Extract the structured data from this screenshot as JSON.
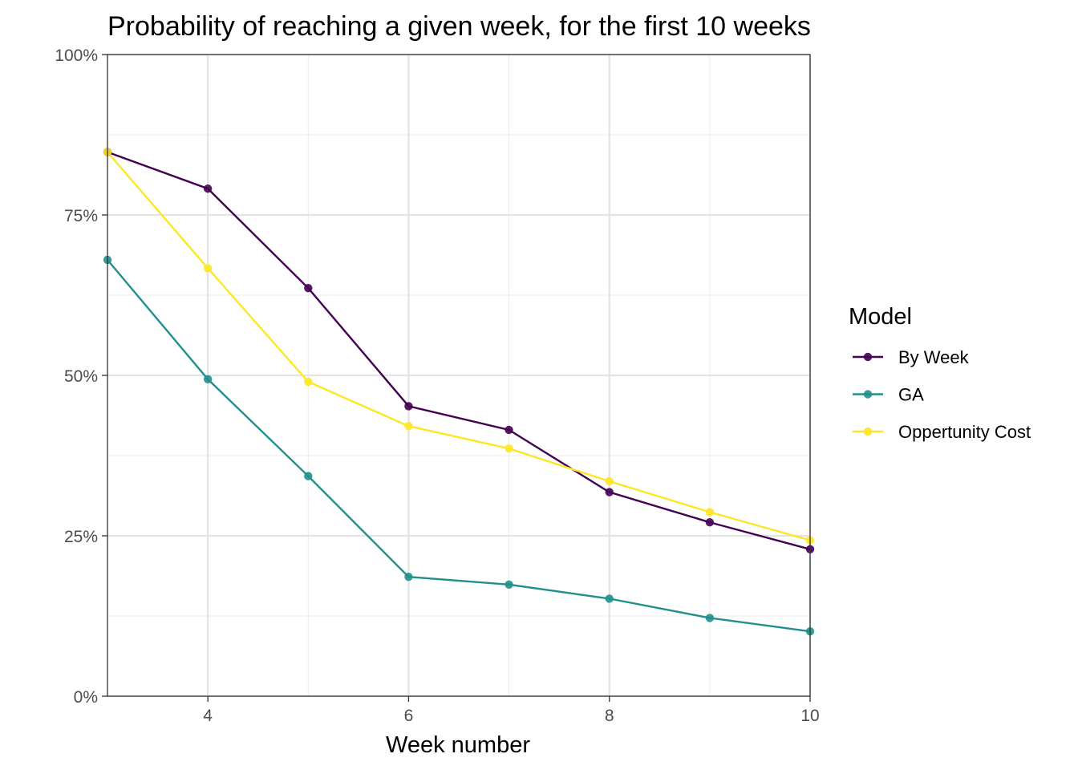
{
  "chart_data": {
    "type": "line",
    "title": "Probability of reaching a given week, for the first 10 weeks",
    "xlabel": "Week number",
    "ylabel": "",
    "xlim": [
      3,
      10
    ],
    "ylim": [
      0,
      1
    ],
    "x_ticks": [
      4,
      6,
      8,
      10
    ],
    "x_minor_ticks": [
      3,
      5,
      7,
      9
    ],
    "y_ticks": [
      0,
      0.25,
      0.5,
      0.75,
      1.0
    ],
    "y_tick_labels": [
      "0%",
      "25%",
      "50%",
      "75%",
      "100%"
    ],
    "y_minor_ticks": [
      0.125,
      0.375,
      0.625,
      0.875
    ],
    "grid": true,
    "legend": {
      "title": "Model",
      "position": "right"
    },
    "x": [
      3,
      4,
      5,
      6,
      7,
      8,
      9,
      10
    ],
    "series": [
      {
        "name": "By Week",
        "color": "#440154",
        "values": [
          0.848,
          0.791,
          0.636,
          0.452,
          0.415,
          0.318,
          0.271,
          0.229
        ]
      },
      {
        "name": "GA",
        "color": "#21908C",
        "values": [
          0.68,
          0.494,
          0.343,
          0.186,
          0.174,
          0.152,
          0.122,
          0.101
        ]
      },
      {
        "name": "Oppertunity Cost",
        "color": "#FDE725",
        "values": [
          0.848,
          0.667,
          0.49,
          0.421,
          0.386,
          0.335,
          0.287,
          0.243
        ]
      }
    ]
  }
}
